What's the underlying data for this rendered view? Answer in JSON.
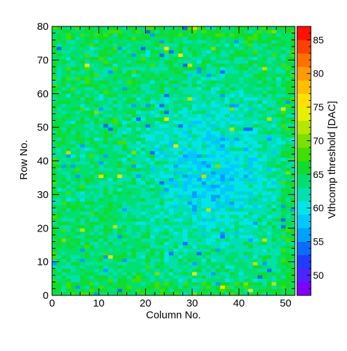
{
  "chart_data": {
    "type": "heatmap",
    "title": "",
    "xlabel": "Column No.",
    "ylabel": "Row No.",
    "zlabel": "Vthcomp threshold [DAC]",
    "n_columns": 52,
    "n_rows": 80,
    "xlim": [
      0,
      52
    ],
    "ylim": [
      0,
      80
    ],
    "zlim": [
      47,
      87
    ],
    "x_ticks": [
      "0",
      "10",
      "20",
      "30",
      "40",
      "50"
    ],
    "y_ticks": [
      "0",
      "10",
      "20",
      "30",
      "40",
      "50",
      "60",
      "70",
      "80"
    ],
    "z_ticks": [
      "50",
      "55",
      "60",
      "65",
      "70",
      "75",
      "80",
      "85"
    ],
    "z_tick_values": [
      50,
      55,
      60,
      65,
      70,
      75,
      80,
      85
    ],
    "color_stops": [
      "#7f00ff",
      "#4d24ff",
      "#1f3bff",
      "#0a6cff",
      "#00a0ff",
      "#00c8ff",
      "#00e6e6",
      "#00e0b0",
      "#00e070",
      "#10dc30",
      "#40e000",
      "#7ce000",
      "#b4e800",
      "#e6f000",
      "#ffe000",
      "#ffbf00",
      "#ff9a00",
      "#ff7000",
      "#ff4000",
      "#ff1000"
    ],
    "data_summary": {
      "typical_value": 63,
      "low_region_center": [
        34,
        36
      ],
      "low_region_value": 59,
      "high_edges_value": 66
    }
  }
}
